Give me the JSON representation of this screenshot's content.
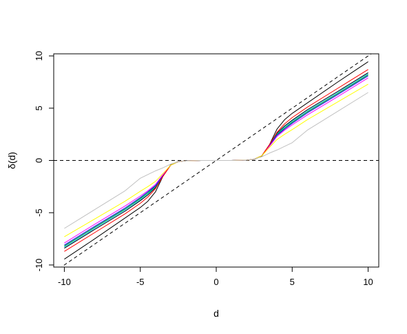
{
  "chart_data": {
    "type": "line",
    "title": "",
    "xlabel": "d",
    "ylabel": "δ(d)",
    "xlim": [
      -10.7,
      10.7
    ],
    "ylim": [
      -10.2,
      10.2
    ],
    "xticks": [
      -10,
      -5,
      0,
      5,
      10
    ],
    "yticks": [
      -10,
      -5,
      0,
      5,
      10
    ],
    "xtick_labels": [
      "-10",
      "-5",
      "0",
      "5",
      "10"
    ],
    "ytick_labels": [
      "-10",
      "-5",
      "0",
      "5",
      "10"
    ],
    "grid": false,
    "legend": "none",
    "reference_lines": [
      {
        "kind": "identity",
        "x": [
          -10.7,
          10.7
        ],
        "y": [
          -10.7,
          10.7
        ],
        "color": "#000000",
        "dashed": true
      },
      {
        "kind": "zero",
        "x": [
          -10.7,
          10.7
        ],
        "y": [
          0,
          0
        ],
        "color": "#000000",
        "dashed": true
      }
    ],
    "series": [
      {
        "color": "#000000",
        "x": [
          -10,
          -8,
          -6,
          -5,
          -4.5,
          -4,
          -3.5,
          -3,
          -2.5,
          -2,
          -1.5,
          -1,
          1,
          1.5,
          2,
          2.5,
          3,
          3.5,
          4,
          4.5,
          5,
          6,
          8,
          10
        ],
        "y": [
          -9.45,
          -7.5,
          -5.5,
          -4.5,
          -3.9,
          -3.0,
          -1.5,
          -0.4,
          -0.1,
          -0.03,
          -0.01,
          0,
          0,
          0.01,
          0.03,
          0.1,
          0.4,
          1.5,
          3.0,
          3.9,
          4.5,
          5.5,
          7.5,
          9.45
        ]
      },
      {
        "color": "#000000",
        "x": [
          -10,
          -8,
          -6,
          -5,
          -4.5,
          -4,
          -3.5,
          -3,
          -2.5,
          -2,
          -1.5,
          -1,
          1,
          1.5,
          2,
          2.5,
          3,
          3.5,
          4,
          4.5,
          5,
          6,
          8,
          10
        ],
        "y": [
          -8.4,
          -6.6,
          -4.85,
          -3.85,
          -3.3,
          -2.6,
          -1.5,
          -0.45,
          -0.12,
          -0.03,
          -0.01,
          0,
          0,
          0.01,
          0.03,
          0.12,
          0.45,
          1.5,
          2.6,
          3.3,
          3.85,
          4.85,
          6.6,
          8.4
        ]
      },
      {
        "color": "#00bfff",
        "x": [
          -10,
          -8,
          -6,
          -5,
          -4.5,
          -4,
          -3.5,
          -3,
          -2.5,
          -2,
          -1.5,
          -1,
          1,
          1.5,
          2,
          2.5,
          3,
          3.5,
          4,
          4.5,
          5,
          6,
          8,
          10
        ],
        "y": [
          -8.3,
          -6.5,
          -4.75,
          -3.75,
          -3.2,
          -2.5,
          -1.45,
          -0.45,
          -0.12,
          -0.03,
          -0.01,
          0,
          0,
          0.01,
          0.03,
          0.12,
          0.45,
          1.45,
          2.5,
          3.2,
          3.75,
          4.75,
          6.5,
          8.3
        ]
      },
      {
        "color": "#00aa00",
        "x": [
          -10,
          -8,
          -6,
          -5,
          -4.5,
          -4,
          -3.5,
          -3,
          -2.5,
          -2,
          -1.5,
          -1,
          1,
          1.5,
          2,
          2.5,
          3,
          3.5,
          4,
          4.5,
          5,
          6,
          8,
          10
        ],
        "y": [
          -8.2,
          -6.4,
          -4.65,
          -3.65,
          -3.1,
          -2.45,
          -1.4,
          -0.45,
          -0.12,
          -0.03,
          -0.01,
          0,
          0,
          0.01,
          0.03,
          0.12,
          0.45,
          1.4,
          2.45,
          3.1,
          3.65,
          4.65,
          6.4,
          8.2
        ]
      },
      {
        "color": "#0000ff",
        "x": [
          -10,
          -8,
          -6,
          -5,
          -4.5,
          -4,
          -3.5,
          -3,
          -2.5,
          -2,
          -1.5,
          -1,
          1,
          1.5,
          2,
          2.5,
          3,
          3.5,
          4,
          4.5,
          5,
          6,
          8,
          10
        ],
        "y": [
          -8.1,
          -6.3,
          -4.55,
          -3.55,
          -3.0,
          -2.4,
          -1.4,
          -0.45,
          -0.12,
          -0.03,
          -0.01,
          0,
          0,
          0.01,
          0.03,
          0.12,
          0.45,
          1.4,
          2.4,
          3.0,
          3.55,
          4.55,
          6.3,
          8.1
        ]
      },
      {
        "color": "#ff00ff",
        "x": [
          -10,
          -8,
          -6,
          -5,
          -4.5,
          -4,
          -3.5,
          -3,
          -2.5,
          -2,
          -1.5,
          -1,
          1,
          1.5,
          2,
          2.5,
          3,
          3.5,
          4,
          4.5,
          5,
          6,
          8,
          10
        ],
        "y": [
          -7.9,
          -6.1,
          -4.35,
          -3.4,
          -2.9,
          -2.3,
          -1.35,
          -0.45,
          -0.12,
          -0.03,
          -0.01,
          0,
          0,
          0.01,
          0.03,
          0.12,
          0.45,
          1.35,
          2.3,
          2.9,
          3.4,
          4.35,
          6.1,
          7.9
        ]
      },
      {
        "color": "#ff0000",
        "x": [
          -10,
          -8,
          -6,
          -5,
          -4.5,
          -4,
          -3.5,
          -3,
          -2.5,
          -2,
          -1.5,
          -1,
          1,
          1.5,
          2,
          2.5,
          3,
          3.5,
          4,
          4.5,
          5,
          6,
          8,
          10
        ],
        "y": [
          -8.7,
          -6.9,
          -5.1,
          -4.1,
          -3.5,
          -2.7,
          -1.5,
          -0.45,
          -0.12,
          -0.03,
          -0.01,
          0,
          0,
          0.01,
          0.03,
          0.12,
          0.45,
          1.5,
          2.7,
          3.5,
          4.1,
          5.1,
          6.9,
          8.7
        ]
      },
      {
        "color": "#ffff00",
        "x": [
          -10,
          -8,
          -6,
          -5,
          -4.5,
          -4,
          -3.5,
          -3,
          -2.5,
          -2,
          -1.5,
          -1,
          1,
          1.5,
          2,
          2.5,
          3,
          3.5,
          4,
          4.5,
          5,
          6,
          8,
          10
        ],
        "y": [
          -7.3,
          -5.6,
          -3.9,
          -2.95,
          -2.5,
          -2.0,
          -1.25,
          -0.45,
          -0.12,
          -0.03,
          -0.01,
          0,
          0,
          0.01,
          0.03,
          0.12,
          0.45,
          1.25,
          2.0,
          2.5,
          2.95,
          3.9,
          5.6,
          7.3
        ]
      },
      {
        "color": "#c0c0c0",
        "x": [
          -10,
          -8,
          -6,
          -5,
          -4.5,
          -4,
          -3.5,
          -3,
          -2.5,
          -2,
          -1.5,
          -1,
          1,
          1.5,
          2,
          2.5,
          3,
          3.5,
          4,
          4.5,
          5,
          6,
          8,
          10
        ],
        "y": [
          -6.5,
          -4.7,
          -2.9,
          -1.7,
          -1.35,
          -1.0,
          -0.7,
          -0.35,
          -0.12,
          -0.03,
          -0.01,
          0,
          0,
          0.01,
          0.03,
          0.12,
          0.35,
          0.7,
          1.0,
          1.35,
          1.7,
          2.9,
          4.7,
          6.5
        ]
      }
    ]
  }
}
